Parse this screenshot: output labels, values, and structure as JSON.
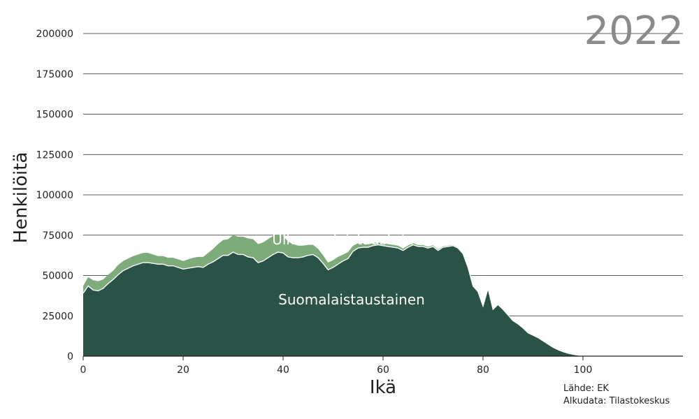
{
  "header": {
    "year": "2022"
  },
  "source": {
    "line1": "Lähde: EK",
    "line2": "Alkudata: Tilastokeskus"
  },
  "colors": {
    "finnish": "#2a5246",
    "foreign": "#7dac7a",
    "grid": "#222222",
    "text": "#222222",
    "year": "#8a8a8a"
  },
  "chart_data": {
    "type": "area",
    "stacked": true,
    "xlabel": "Ikä",
    "ylabel": "Henkilöitä",
    "xlim": [
      0,
      120
    ],
    "ylim": [
      0,
      200000
    ],
    "xticks": [
      0,
      20,
      40,
      60,
      80,
      100
    ],
    "yticks": [
      0,
      25000,
      50000,
      75000,
      100000,
      125000,
      150000,
      175000,
      200000
    ],
    "grid": "horizontal",
    "x": [
      0,
      1,
      2,
      3,
      4,
      5,
      6,
      7,
      8,
      9,
      10,
      11,
      12,
      13,
      14,
      15,
      16,
      17,
      18,
      19,
      20,
      21,
      22,
      23,
      24,
      25,
      26,
      27,
      28,
      29,
      30,
      31,
      32,
      33,
      34,
      35,
      36,
      37,
      38,
      39,
      40,
      41,
      42,
      43,
      44,
      45,
      46,
      47,
      48,
      49,
      50,
      51,
      52,
      53,
      54,
      55,
      56,
      57,
      58,
      59,
      60,
      61,
      62,
      63,
      64,
      65,
      66,
      67,
      68,
      69,
      70,
      71,
      72,
      73,
      74,
      75,
      76,
      77,
      78,
      79,
      80,
      81,
      82,
      83,
      84,
      85,
      86,
      87,
      88,
      89,
      90,
      91,
      92,
      93,
      94,
      95,
      96,
      97,
      98,
      99,
      100,
      101,
      102,
      103,
      104,
      105,
      106,
      107,
      108,
      109,
      110,
      111,
      112,
      113,
      114,
      115,
      116,
      117,
      118,
      119
    ],
    "series": [
      {
        "name": "Suomalaistaustainen",
        "values": [
          39000,
          43500,
          41000,
          40500,
          42000,
          45000,
          47500,
          50500,
          53000,
          54500,
          56000,
          57000,
          58000,
          58000,
          57500,
          57000,
          57000,
          56000,
          56000,
          55000,
          54000,
          54500,
          55000,
          55500,
          55000,
          57000,
          58500,
          60500,
          62500,
          62500,
          64500,
          63000,
          63000,
          61500,
          61000,
          58000,
          59000,
          61000,
          63000,
          64500,
          64000,
          61500,
          61000,
          61000,
          61500,
          62500,
          63000,
          61000,
          57500,
          53500,
          55000,
          57000,
          59000,
          60500,
          65000,
          67000,
          67500,
          67500,
          68500,
          69000,
          68500,
          68000,
          67500,
          67000,
          65500,
          67500,
          69000,
          68000,
          68000,
          67000,
          68000,
          65500,
          67500,
          68000,
          68500,
          67000,
          63500,
          55000,
          43500,
          40000,
          31000,
          42000,
          29000,
          32000,
          29000,
          25500,
          22000,
          20000,
          17500,
          14500,
          13000,
          11500,
          9500,
          7500,
          5500,
          4000,
          2800,
          1800,
          1100,
          600,
          300,
          150,
          80,
          40,
          20,
          10,
          5,
          0,
          0,
          0,
          0,
          0,
          0,
          0,
          0,
          0,
          0,
          0,
          0,
          0
        ]
      },
      {
        "name": "Ulkomaalaistaustainen",
        "values": [
          4500,
          5500,
          6000,
          6000,
          5500,
          5500,
          5500,
          6000,
          6000,
          6000,
          6000,
          6000,
          6000,
          6000,
          5500,
          5000,
          5000,
          5000,
          5000,
          5000,
          5000,
          5500,
          6000,
          6000,
          6500,
          7000,
          8000,
          9000,
          9500,
          10000,
          10500,
          11000,
          11000,
          11500,
          11500,
          11500,
          11500,
          11500,
          11500,
          11000,
          10500,
          9500,
          8500,
          7500,
          7000,
          6500,
          6000,
          5500,
          5000,
          4500,
          4500,
          4500,
          4000,
          4000,
          3500,
          3000,
          2500,
          2000,
          1500,
          1500,
          1500,
          1500,
          1500,
          1500,
          1200,
          1100,
          1000,
          900,
          900,
          800,
          800,
          700,
          600,
          500,
          500,
          400,
          300,
          200,
          150,
          100,
          80,
          60,
          50,
          40,
          30,
          20,
          15,
          10,
          5,
          0,
          0,
          0,
          0,
          0,
          0,
          0,
          0,
          0,
          0,
          0,
          0,
          0,
          0,
          0,
          0,
          0,
          0,
          0,
          0,
          0,
          0,
          0,
          0,
          0,
          0,
          0,
          0,
          0,
          0,
          0
        ]
      }
    ]
  }
}
